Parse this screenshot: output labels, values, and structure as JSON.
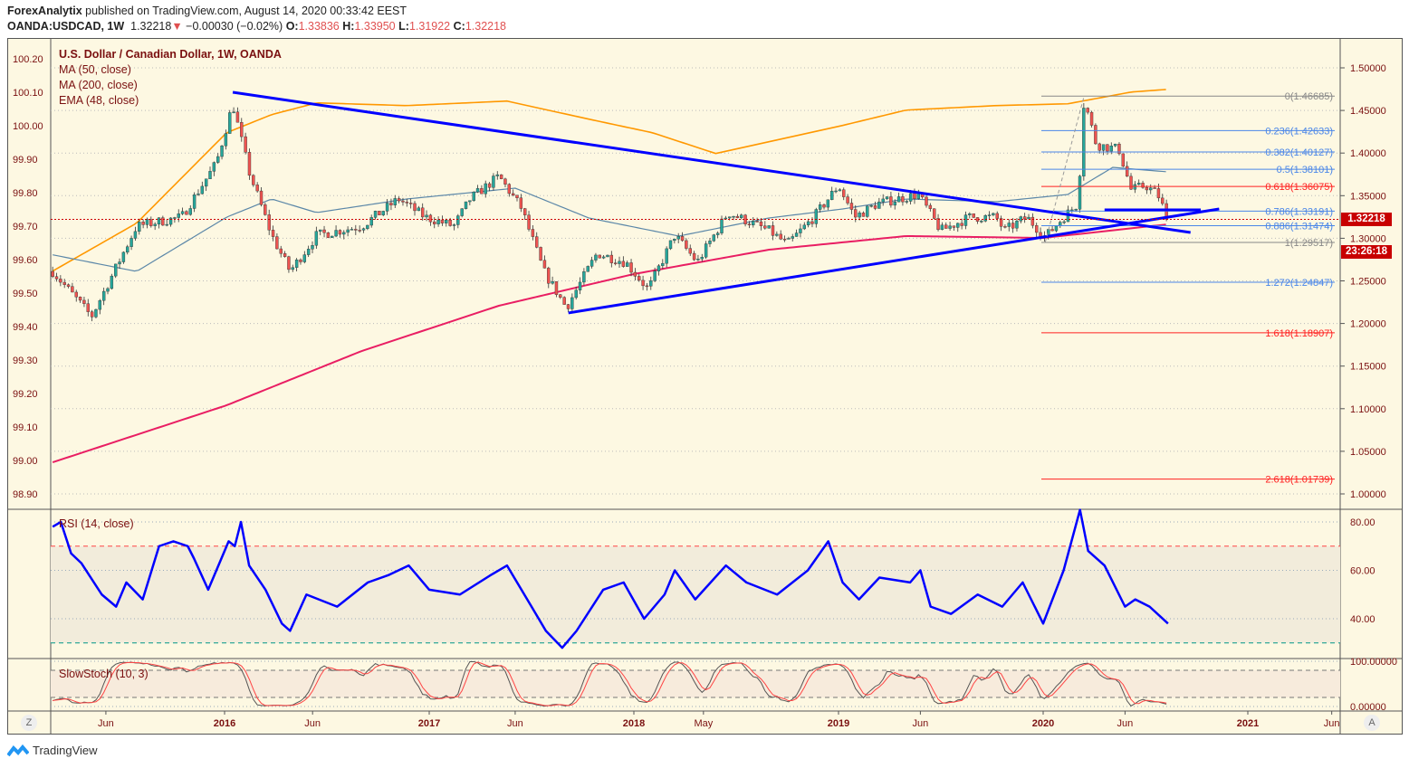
{
  "header": {
    "publisher": "ForexAnalytix",
    "published_text": "published on TradingView.com, August 14, 2020 00:33:42 EEST",
    "symbol": "OANDA:USDCAD, 1W",
    "last": "1.32218",
    "change": "−0.00030 (−0.02%)",
    "o_label": "O:",
    "o": "1.33836",
    "h_label": "H:",
    "h": "1.33950",
    "l_label": "L:",
    "l": "1.31922",
    "c_label": "C:",
    "c": "1.32218"
  },
  "legend": {
    "title": "U.S. Dollar / Canadian Dollar, 1W, OANDA",
    "ma50": "MA (50, close)",
    "ma200": "MA (200, close)",
    "ema48": "EMA (48, close)",
    "rsi": "RSI (14, close)",
    "stoch": "SlowStoch (10, 3)"
  },
  "price_tag": "1.32218",
  "countdown": "23:26:18",
  "buttons": {
    "zoom": "Z",
    "auto": "A"
  },
  "footer": "TradingView",
  "colors": {
    "up": "#26a69a",
    "down": "#ef5350",
    "ma50": "#5b87a8",
    "ema48": "#ff9800",
    "ma200": "#e91e63",
    "trend": "#0000ff",
    "rsi": "#0000ff"
  },
  "chart_data": {
    "type": "candlestick",
    "title": "U.S. Dollar / Canadian Dollar, 1W, OANDA",
    "left_axis_ticks": [
      "100.20",
      "100.10",
      "100.00",
      "99.90",
      "99.80",
      "99.70",
      "99.60",
      "99.50",
      "99.40",
      "99.30",
      "99.20",
      "99.10",
      "99.00",
      "98.90"
    ],
    "right_axis_ticks": [
      "1.50000",
      "1.45000",
      "1.40000",
      "1.35000",
      "1.30000",
      "1.25000",
      "1.20000",
      "1.15000",
      "1.10000",
      "1.05000",
      "1.00000"
    ],
    "ylim": [
      1.0,
      1.5
    ],
    "time_ticks": [
      {
        "label": "Jun",
        "t": 2015.42
      },
      {
        "label": "2016",
        "t": 2016.0
      },
      {
        "label": "Jun",
        "t": 2016.43
      },
      {
        "label": "2017",
        "t": 2017.0
      },
      {
        "label": "Jun",
        "t": 2017.42
      },
      {
        "label": "2018",
        "t": 2018.0
      },
      {
        "label": "May",
        "t": 2018.34
      },
      {
        "label": "2019",
        "t": 2019.0
      },
      {
        "label": "Jun",
        "t": 2019.4
      },
      {
        "label": "2020",
        "t": 2020.0
      },
      {
        "label": "Jun",
        "t": 2020.4
      },
      {
        "label": "2021",
        "t": 2021.0
      },
      {
        "label": "Jun",
        "t": 2021.41
      }
    ],
    "price_path": [
      [
        2015.16,
        1.2611
      ],
      [
        2015.35,
        1.2081
      ],
      [
        2015.57,
        1.3142
      ],
      [
        2015.79,
        1.3248
      ],
      [
        2015.96,
        1.3885
      ],
      [
        2016.04,
        1.4575
      ],
      [
        2016.12,
        1.3779
      ],
      [
        2016.23,
        1.3036
      ],
      [
        2016.32,
        1.2611
      ],
      [
        2016.45,
        1.3036
      ],
      [
        2016.67,
        1.3142
      ],
      [
        2016.85,
        1.3461
      ],
      [
        2016.98,
        1.3248
      ],
      [
        2017.12,
        1.3142
      ],
      [
        2017.2,
        1.3461
      ],
      [
        2017.34,
        1.3726
      ],
      [
        2017.45,
        1.3355
      ],
      [
        2017.56,
        1.2611
      ],
      [
        2017.67,
        1.2187
      ],
      [
        2017.82,
        1.2824
      ],
      [
        2017.96,
        1.2718
      ],
      [
        2018.07,
        1.2399
      ],
      [
        2018.2,
        1.3036
      ],
      [
        2018.31,
        1.2718
      ],
      [
        2018.46,
        1.3301
      ],
      [
        2018.66,
        1.3089
      ],
      [
        2018.75,
        1.293
      ],
      [
        2018.88,
        1.3248
      ],
      [
        2019.0,
        1.362
      ],
      [
        2019.08,
        1.3248
      ],
      [
        2019.19,
        1.3408
      ],
      [
        2019.39,
        1.3514
      ],
      [
        2019.5,
        1.3089
      ],
      [
        2019.64,
        1.3248
      ],
      [
        2019.77,
        1.3248
      ],
      [
        2019.81,
        1.3089
      ],
      [
        2019.92,
        1.3248
      ],
      [
        2020.01,
        1.3015
      ],
      [
        2020.1,
        1.3248
      ],
      [
        2020.17,
        1.3408
      ],
      [
        2020.2,
        1.4628
      ],
      [
        2020.26,
        1.4098
      ],
      [
        2020.37,
        1.4045
      ],
      [
        2020.43,
        1.3567
      ],
      [
        2020.5,
        1.362
      ],
      [
        2020.56,
        1.3514
      ],
      [
        2020.61,
        1.32218
      ]
    ],
    "ma50": [
      [
        2015.16,
        1.2806
      ],
      [
        2015.57,
        1.2611
      ],
      [
        2016.01,
        1.3248
      ],
      [
        2016.23,
        1.3461
      ],
      [
        2016.45,
        1.3301
      ],
      [
        2016.89,
        1.3461
      ],
      [
        2017.42,
        1.3588
      ],
      [
        2017.78,
        1.3238
      ],
      [
        2018.22,
        1.3026
      ],
      [
        2018.66,
        1.3238
      ],
      [
        2019.02,
        1.3344
      ],
      [
        2019.33,
        1.3461
      ],
      [
        2019.77,
        1.3429
      ],
      [
        2020.12,
        1.3514
      ],
      [
        2020.34,
        1.3832
      ],
      [
        2020.61,
        1.3779
      ]
    ],
    "ema48": [
      [
        2015.16,
        1.2615
      ],
      [
        2015.57,
        1.3177
      ],
      [
        2016.01,
        1.4239
      ],
      [
        2016.23,
        1.4451
      ],
      [
        2016.45,
        1.4589
      ],
      [
        2016.89,
        1.4557
      ],
      [
        2017.38,
        1.461
      ],
      [
        2017.78,
        1.4398
      ],
      [
        2018.09,
        1.4239
      ],
      [
        2018.4,
        1.3995
      ],
      [
        2018.66,
        1.4133
      ],
      [
        2019.02,
        1.4324
      ],
      [
        2019.33,
        1.4504
      ],
      [
        2019.77,
        1.4557
      ],
      [
        2020.12,
        1.4578
      ],
      [
        2020.43,
        1.4716
      ],
      [
        2020.61,
        1.4748
      ]
    ],
    "ma200": [
      [
        2015.16,
        1.0371
      ],
      [
        2016.01,
        1.104
      ],
      [
        2016.67,
        1.1677
      ],
      [
        2017.34,
        1.2208
      ],
      [
        2018.0,
        1.258
      ],
      [
        2018.66,
        1.2866
      ],
      [
        2019.33,
        1.3026
      ],
      [
        2020.0,
        1.3004
      ],
      [
        2020.61,
        1.3164
      ]
    ],
    "trendlines": [
      [
        [
          2016.04,
          1.4713
        ],
        [
          2020.72,
          1.3068
        ]
      ],
      [
        [
          2017.68,
          1.2124
        ],
        [
          2020.86,
          1.3344
        ]
      ],
      [
        [
          2020.3,
          1.3333
        ],
        [
          2020.77,
          1.3333
        ]
      ],
      [
        [
          2020.01,
          1.2952
        ],
        [
          2020.2,
          1.4668
        ]
      ]
    ],
    "fib": [
      {
        "label": "0(1.46685)",
        "price": 1.46685,
        "color": "#888888"
      },
      {
        "label": "0.236(1.42633)",
        "price": 1.42633,
        "color": "#4a86e8"
      },
      {
        "label": "0.382(1.40127)",
        "price": 1.40127,
        "color": "#4a86e8"
      },
      {
        "label": "0.5(1.38101)",
        "price": 1.38101,
        "color": "#4a86e8"
      },
      {
        "label": "0.618(1.36075)",
        "price": 1.36075,
        "color": "#ff2020"
      },
      {
        "label": "0.786(1.33191)",
        "price": 1.33191,
        "color": "#4a86e8"
      },
      {
        "label": "0.886(1.31474)",
        "price": 1.31474,
        "color": "#4a86e8"
      },
      {
        "label": "1(1.29517)",
        "price": 1.29517,
        "color": "#888888"
      },
      {
        "label": "1.272(1.24847)",
        "price": 1.24847,
        "color": "#4a86e8"
      },
      {
        "label": "1.618(1.18907)",
        "price": 1.18907,
        "color": "#ff2020"
      },
      {
        "label": "2.618(1.01739)",
        "price": 1.01739,
        "color": "#ff2020"
      }
    ],
    "rsi": {
      "ticks": [
        "80.00",
        "60.00",
        "40.00"
      ],
      "overbought": 70,
      "oversold": 30,
      "values": [
        [
          2015.16,
          78
        ],
        [
          2015.2,
          80
        ],
        [
          2015.25,
          67
        ],
        [
          2015.3,
          63
        ],
        [
          2015.4,
          50
        ],
        [
          2015.47,
          45
        ],
        [
          2015.52,
          55
        ],
        [
          2015.6,
          48
        ],
        [
          2015.68,
          70
        ],
        [
          2015.75,
          72
        ],
        [
          2015.82,
          70
        ],
        [
          2015.85,
          65
        ],
        [
          2015.92,
          52
        ],
        [
          2015.96,
          60
        ],
        [
          2016.02,
          72
        ],
        [
          2016.05,
          70
        ],
        [
          2016.08,
          80
        ],
        [
          2016.12,
          62
        ],
        [
          2016.2,
          52
        ],
        [
          2016.28,
          38
        ],
        [
          2016.32,
          35
        ],
        [
          2016.4,
          50
        ],
        [
          2016.55,
          45
        ],
        [
          2016.7,
          55
        ],
        [
          2016.8,
          58
        ],
        [
          2016.9,
          62
        ],
        [
          2017.0,
          52
        ],
        [
          2017.15,
          50
        ],
        [
          2017.3,
          58
        ],
        [
          2017.38,
          62
        ],
        [
          2017.5,
          45
        ],
        [
          2017.57,
          35
        ],
        [
          2017.65,
          28
        ],
        [
          2017.72,
          35
        ],
        [
          2017.85,
          52
        ],
        [
          2017.95,
          55
        ],
        [
          2018.05,
          40
        ],
        [
          2018.15,
          50
        ],
        [
          2018.2,
          60
        ],
        [
          2018.3,
          48
        ],
        [
          2018.45,
          62
        ],
        [
          2018.55,
          55
        ],
        [
          2018.7,
          50
        ],
        [
          2018.85,
          60
        ],
        [
          2018.95,
          72
        ],
        [
          2019.02,
          55
        ],
        [
          2019.1,
          48
        ],
        [
          2019.2,
          57
        ],
        [
          2019.35,
          55
        ],
        [
          2019.4,
          60
        ],
        [
          2019.45,
          45
        ],
        [
          2019.55,
          42
        ],
        [
          2019.68,
          50
        ],
        [
          2019.8,
          45
        ],
        [
          2019.9,
          55
        ],
        [
          2020.0,
          38
        ],
        [
          2020.1,
          60
        ],
        [
          2020.18,
          85
        ],
        [
          2020.22,
          68
        ],
        [
          2020.3,
          62
        ],
        [
          2020.4,
          45
        ],
        [
          2020.45,
          48
        ],
        [
          2020.52,
          45
        ],
        [
          2020.61,
          38
        ]
      ]
    },
    "stoch": {
      "ticks": [
        "100.00000",
        "0.00000"
      ],
      "upper": 80,
      "lower": 20,
      "k": 10,
      "smooth": 3
    }
  }
}
